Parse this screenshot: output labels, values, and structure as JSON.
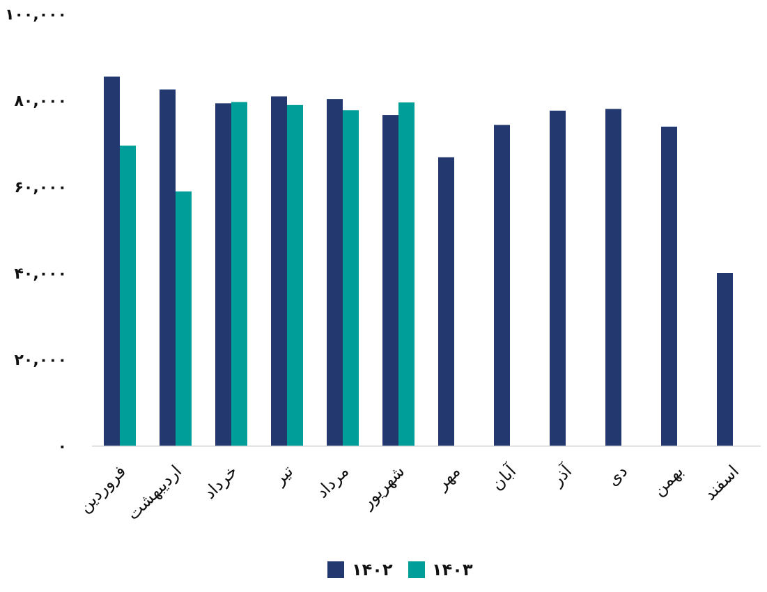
{
  "chart_data": {
    "type": "bar",
    "categories": [
      "فروردین",
      "اردیبهشت",
      "خرداد",
      "تیر",
      "مرداد",
      "شهریور",
      "مهر",
      "آبان",
      "آذر",
      "دی",
      "بهمن",
      "اسفند"
    ],
    "y_tick_labels": [
      "۰",
      "۲۰,۰۰۰",
      "۴۰,۰۰۰",
      "۶۰,۰۰۰",
      "۸۰,۰۰۰",
      "۱۰۰,۰۰۰"
    ],
    "y_ticks": [
      0,
      20000,
      40000,
      60000,
      80000,
      100000
    ],
    "ylim": [
      0,
      100000
    ],
    "grid": false,
    "legend_position": "bottom",
    "series": [
      {
        "name": "۱۴۰۲",
        "color": "#22386f",
        "values": [
          85500,
          82500,
          79300,
          80900,
          80300,
          76600,
          66800,
          74300,
          77600,
          78000,
          73900,
          40000
        ]
      },
      {
        "name": "۱۴۰۳",
        "color": "#009e98",
        "values": [
          69500,
          58900,
          79600,
          78900,
          77700,
          79500,
          null,
          null,
          null,
          null,
          null,
          null
        ]
      }
    ]
  }
}
